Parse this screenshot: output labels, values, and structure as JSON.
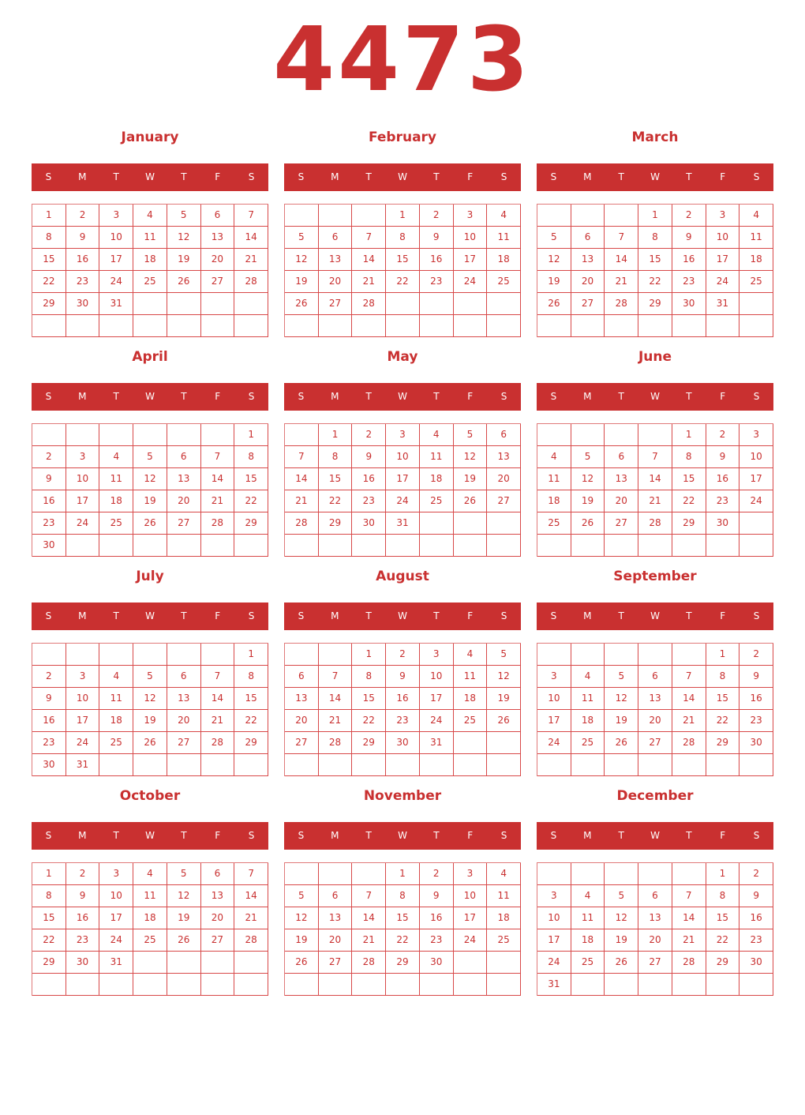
{
  "year": "4473",
  "accent_color": "#c93030",
  "weekday_labels": [
    "S",
    "M",
    "T",
    "W",
    "T",
    "F",
    "S"
  ],
  "months": [
    {
      "name": "January",
      "start_weekday": 0,
      "days": 31
    },
    {
      "name": "February",
      "start_weekday": 3,
      "days": 28
    },
    {
      "name": "March",
      "start_weekday": 3,
      "days": 31
    },
    {
      "name": "April",
      "start_weekday": 6,
      "days": 30
    },
    {
      "name": "May",
      "start_weekday": 1,
      "days": 31
    },
    {
      "name": "June",
      "start_weekday": 4,
      "days": 30
    },
    {
      "name": "July",
      "start_weekday": 6,
      "days": 31
    },
    {
      "name": "August",
      "start_weekday": 2,
      "days": 31
    },
    {
      "name": "September",
      "start_weekday": 5,
      "days": 30
    },
    {
      "name": "October",
      "start_weekday": 0,
      "days": 31
    },
    {
      "name": "November",
      "start_weekday": 3,
      "days": 30
    },
    {
      "name": "December",
      "start_weekday": 5,
      "days": 31
    }
  ]
}
